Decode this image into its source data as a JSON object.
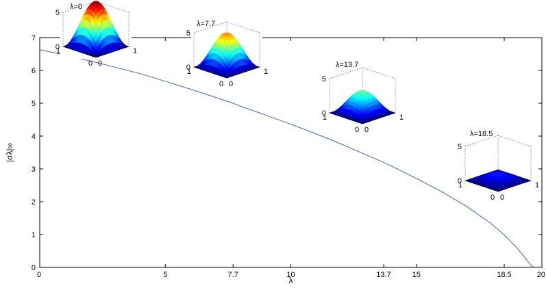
{
  "chart_data": {
    "type": "line",
    "xlabel": "λ",
    "ylabel": "|σλ|∞",
    "xlim": [
      0,
      20
    ],
    "ylim": [
      0,
      7
    ],
    "xticks": [
      "0",
      "5",
      "7.7",
      "10",
      "13.7",
      "15",
      "18.5",
      "20"
    ],
    "xtick_values": [
      0,
      5,
      7.7,
      10,
      13.7,
      15,
      18.5,
      20
    ],
    "yticks": [
      "0",
      "1",
      "2",
      "3",
      "4",
      "5",
      "6",
      "7"
    ],
    "ytick_values": [
      0,
      1,
      2,
      3,
      4,
      5,
      6,
      7
    ],
    "grid": false,
    "series": [
      {
        "color": "#3a66c8",
        "x": [
          0,
          1,
          2,
          3,
          4,
          5,
          6,
          7,
          7.7,
          8,
          9,
          10,
          11,
          12,
          13,
          13.7,
          14,
          15,
          16,
          17,
          18,
          18.5,
          19,
          19.3,
          19.5,
          19.6,
          19.65,
          19.7
        ],
        "y": [
          6.63,
          6.47,
          6.29,
          6.1,
          5.9,
          5.67,
          5.43,
          5.18,
          5.0,
          4.91,
          4.64,
          4.36,
          4.07,
          3.76,
          3.43,
          3.2,
          3.09,
          2.71,
          2.31,
          1.86,
          1.32,
          0.99,
          0.6,
          0.32,
          0.13,
          0.05,
          0.02,
          0.0
        ]
      }
    ],
    "insets": [
      {
        "label": "λ=0",
        "lambda": 0,
        "peak": 6.63,
        "zmax": 5,
        "x_ticks": [
          "1",
          "0"
        ],
        "y_ticks": [
          "0",
          "1"
        ],
        "z_ticks": [
          "0",
          "5"
        ]
      },
      {
        "label": "λ=7.7",
        "lambda": 7.7,
        "peak": 5.0,
        "zmax": 5,
        "x_ticks": [
          "1",
          "0"
        ],
        "y_ticks": [
          "0",
          "1"
        ],
        "z_ticks": [
          "0",
          "5"
        ]
      },
      {
        "label": "λ=13.7",
        "lambda": 13.7,
        "peak": 3.2,
        "zmax": 5,
        "x_ticks": [
          "1",
          "0"
        ],
        "y_ticks": [
          "0",
          "1"
        ],
        "z_ticks": [
          "0",
          "5"
        ]
      },
      {
        "label": "λ=18.5",
        "lambda": 18.5,
        "peak": 0.99,
        "zmax": 5,
        "x_ticks": [
          "1",
          "0"
        ],
        "y_ticks": [
          "0",
          "1"
        ],
        "z_ticks": [
          "0",
          "5"
        ]
      }
    ]
  }
}
